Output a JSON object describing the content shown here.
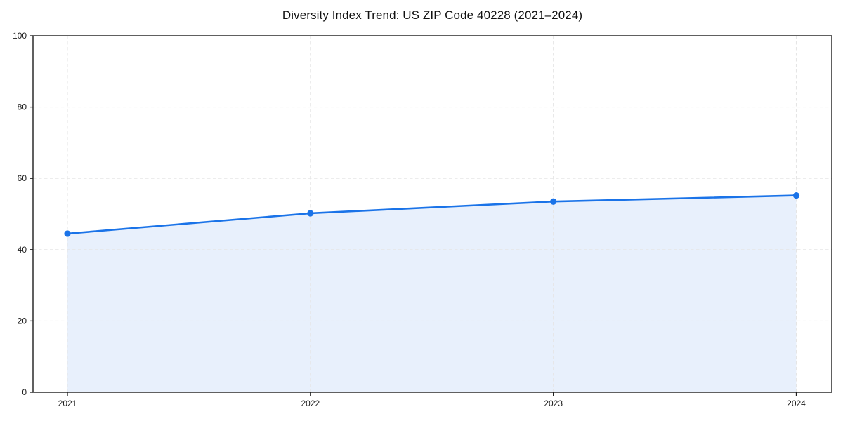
{
  "chart_data": {
    "type": "area",
    "title": "Diversity Index Trend: US ZIP Code 40228 (2021–2024)",
    "series_name": "Diversity Index",
    "categories": [
      "2021",
      "2022",
      "2023",
      "2024"
    ],
    "values": [
      44.5,
      50.2,
      53.5,
      55.2
    ],
    "xlabel": "",
    "ylabel": "",
    "ylim": [
      0,
      100
    ],
    "y_ticks": [
      0,
      20,
      40,
      60,
      80,
      100
    ],
    "grid": true,
    "grid_style": "dashed",
    "legend": "none",
    "colors": {
      "line": "#1a73e8",
      "marker": "#1a73e8",
      "area_fill": "#e8f0fc",
      "grid": "#e5e5e5",
      "frame": "#1c1c1c",
      "tick_label": "#1a1a1a",
      "background": "#ffffff"
    }
  }
}
